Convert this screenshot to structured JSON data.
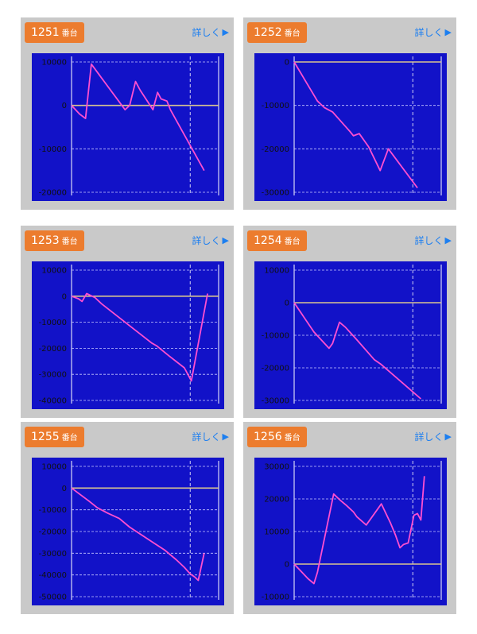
{
  "unit_label": "番台",
  "more_label": "詳しく",
  "more_icon": "play-triangle-icon",
  "colors": {
    "plot_bg": "#1212c8",
    "line": "#ff4fd0",
    "zero": "#d9c58f",
    "grid": "#c8c8ff",
    "badge": "#ec7c2e",
    "card": "#c9c9c9",
    "link": "#1d7ff0"
  },
  "chart_data": [
    {
      "type": "line",
      "machine": "1251",
      "yticks": [
        10000,
        0,
        -10000,
        -20000
      ],
      "ylim": [
        -20000,
        10000
      ],
      "x": [
        0,
        0.7,
        1.2,
        1.7,
        4.6,
        5.0,
        5.5,
        5.9,
        7.0,
        7.4,
        7.7,
        8.2,
        8.5,
        11.4
      ],
      "y": [
        0,
        -2000,
        -3000,
        9500,
        -1000,
        0,
        5500,
        3500,
        -1000,
        3000,
        1500,
        1000,
        -1000,
        -15000
      ],
      "title": "",
      "xlabel": "",
      "ylabel": ""
    },
    {
      "type": "line",
      "machine": "1252",
      "yticks": [
        0,
        -10000,
        -20000,
        -30000
      ],
      "ylim": [
        -30000,
        0
      ],
      "x": [
        0,
        2.0,
        2.6,
        3.3,
        4.3,
        4.8,
        5.1,
        5.6,
        6.4,
        7.4,
        8.1,
        10.6
      ],
      "y": [
        0,
        -9000,
        -10500,
        -11500,
        -14500,
        -16000,
        -17000,
        -16500,
        -19500,
        -25000,
        -20000,
        -29000
      ],
      "title": "",
      "xlabel": "",
      "ylabel": ""
    },
    {
      "type": "line",
      "machine": "1253",
      "yticks": [
        10000,
        0,
        -10000,
        -20000,
        -30000,
        -40000
      ],
      "ylim": [
        -40000,
        10000
      ],
      "x": [
        0,
        0.6,
        0.9,
        1.3,
        2.0,
        2.6,
        6.9,
        7.3,
        8.4,
        9.7,
        10.3,
        11.7
      ],
      "y": [
        0,
        -1000,
        -2000,
        1000,
        -500,
        -3000,
        -18000,
        -19000,
        -23000,
        -27500,
        -32500,
        1000
      ],
      "title": "",
      "xlabel": "",
      "ylabel": ""
    },
    {
      "type": "line",
      "machine": "1254",
      "yticks": [
        10000,
        0,
        -10000,
        -20000,
        -30000
      ],
      "ylim": [
        -30000,
        10000
      ],
      "x": [
        0,
        1.7,
        3.0,
        3.3,
        3.9,
        4.4,
        5.3,
        6.9,
        7.5,
        10.9
      ],
      "y": [
        0,
        -9000,
        -14000,
        -12500,
        -6000,
        -7500,
        -11000,
        -17500,
        -19000,
        -29500
      ],
      "title": "",
      "xlabel": "",
      "ylabel": ""
    },
    {
      "type": "line",
      "machine": "1255",
      "yticks": [
        10000,
        0,
        -10000,
        -20000,
        -30000,
        -40000,
        -50000
      ],
      "ylim": [
        -50000,
        10000
      ],
      "x": [
        0,
        1.5,
        2.2,
        3.1,
        4.1,
        5.0,
        6.0,
        7.0,
        8.0,
        9.0,
        9.7,
        10.2,
        10.6,
        10.9,
        11.4
      ],
      "y": [
        0,
        -6000,
        -9000,
        -11500,
        -14000,
        -18000,
        -21500,
        -25000,
        -28500,
        -33000,
        -36500,
        -39500,
        -41000,
        -42500,
        -30000
      ],
      "title": "",
      "xlabel": "",
      "ylabel": ""
    },
    {
      "type": "line",
      "machine": "1256",
      "yticks": [
        30000,
        20000,
        10000,
        0,
        -10000
      ],
      "ylim": [
        -10000,
        30000
      ],
      "x": [
        0,
        1.2,
        1.7,
        2.0,
        3.4,
        4.0,
        4.5,
        5.1,
        5.4,
        6.2,
        7.5,
        8.3,
        8.7,
        9.1,
        9.4,
        9.8,
        10.3,
        10.6,
        10.9,
        11.2
      ],
      "y": [
        0,
        -4500,
        -6000,
        -2500,
        21500,
        19500,
        18000,
        16000,
        14500,
        12000,
        18500,
        12500,
        9000,
        5000,
        6000,
        6500,
        15000,
        15500,
        13500,
        27000
      ],
      "title": "",
      "xlabel": "",
      "ylabel": ""
    }
  ]
}
